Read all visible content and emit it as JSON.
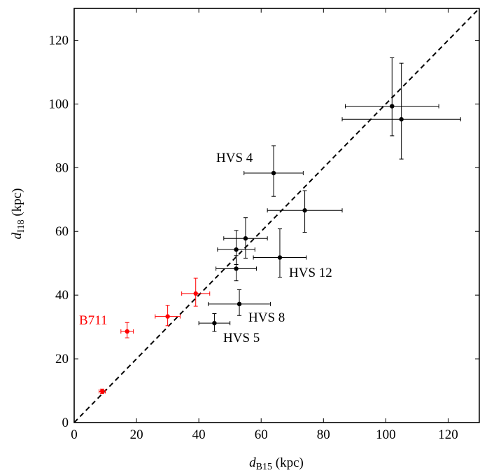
{
  "chart_data": {
    "type": "scatter",
    "title": "",
    "xlabel": {
      "var": "d",
      "sub": "B15",
      "unit": "(kpc)"
    },
    "ylabel": {
      "var": "d",
      "sub": "I18",
      "unit": "(kpc)"
    },
    "xlim": [
      0,
      130
    ],
    "ylim": [
      0,
      130
    ],
    "xticks": [
      0,
      20,
      40,
      60,
      80,
      100,
      120
    ],
    "yticks": [
      0,
      20,
      40,
      60,
      80,
      100,
      120
    ],
    "grid": false,
    "reference_line": {
      "style": "dashed",
      "relation": "y = x",
      "color": "#000000"
    },
    "series": [
      {
        "color": "#000000",
        "points": [
          {
            "x": 102,
            "y": 99.3,
            "xerr": [
              15,
              15
            ],
            "yerr": [
              9.3,
              15.2
            ]
          },
          {
            "x": 105,
            "y": 95.2,
            "xerr": [
              19,
              19
            ],
            "yerr": [
              12.5,
              17.6
            ]
          },
          {
            "x": 64,
            "y": 78.3,
            "xerr": [
              9.5,
              9.5
            ],
            "yerr": [
              7.3,
              8.6
            ]
          },
          {
            "x": 74,
            "y": 66.6,
            "xerr": [
              12,
              12
            ],
            "yerr": [
              6.9,
              6.2
            ]
          },
          {
            "x": 55,
            "y": 57.8,
            "xerr": [
              7,
              7
            ],
            "yerr": [
              6.2,
              6.5
            ]
          },
          {
            "x": 52,
            "y": 54.3,
            "xerr": [
              6,
              6
            ],
            "yerr": [
              4.7,
              6.0
            ]
          },
          {
            "x": 66,
            "y": 51.8,
            "xerr": [
              8.5,
              8.5
            ],
            "yerr": [
              6.2,
              9.0
            ]
          },
          {
            "x": 52,
            "y": 48.3,
            "xerr": [
              6.5,
              6.5
            ],
            "yerr": [
              3.8,
              4.1
            ]
          },
          {
            "x": 53,
            "y": 37.2,
            "xerr": [
              10,
              10
            ],
            "yerr": [
              3.6,
              4.5
            ]
          },
          {
            "x": 45,
            "y": 31.2,
            "xerr": [
              5,
              5
            ],
            "yerr": [
              2.6,
              3.0
            ]
          }
        ]
      },
      {
        "color": "#ff0000",
        "points": [
          {
            "x": 39,
            "y": 40.5,
            "xerr": [
              4.5,
              4.5
            ],
            "yerr": [
              4.0,
              4.8
            ]
          },
          {
            "x": 30,
            "y": 33.3,
            "xerr": [
              4,
              4
            ],
            "yerr": [
              2.9,
              3.5
            ]
          },
          {
            "x": 17,
            "y": 28.6,
            "xerr": [
              2,
              2
            ],
            "yerr": [
              2.0,
              2.8
            ]
          },
          {
            "x": 9,
            "y": 9.8,
            "xerr": [
              1,
              1
            ],
            "yerr": [
              0.7,
              0.7
            ]
          }
        ]
      }
    ],
    "annotations": [
      {
        "text": "HVS 4",
        "color": "#000000"
      },
      {
        "text": "HVS 12",
        "color": "#000000"
      },
      {
        "text": "HVS 8",
        "color": "#000000"
      },
      {
        "text": "HVS 5",
        "color": "#000000"
      },
      {
        "text": "B711",
        "color": "#ff0000"
      }
    ]
  }
}
